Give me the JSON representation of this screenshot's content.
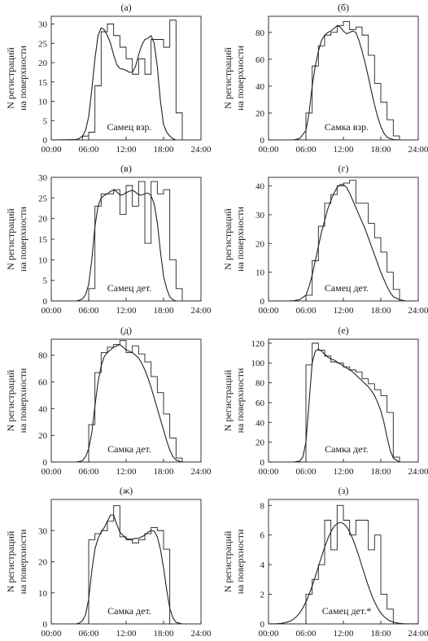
{
  "figure": {
    "y_axis_label_line1": "N регистраций",
    "y_axis_label_line2": "на поверхности"
  },
  "chart_data": [
    {
      "type": "line",
      "panel": "(а)",
      "annotation": "Самец взр.",
      "xlim": [
        "00:00",
        "24:00"
      ],
      "x_ticks": [
        "00:00",
        "06:00",
        "12:00",
        "18:00",
        "24:00"
      ],
      "ylim": [
        0,
        32
      ],
      "y_ticks": [
        0,
        5,
        10,
        15,
        20,
        25,
        30
      ],
      "grid": false,
      "legend": "none",
      "series": [
        {
          "kind": "histogram",
          "bin_width_hours": 1,
          "bin_start_hours": 0,
          "values": [
            0,
            0,
            0,
            0,
            0,
            1,
            2,
            14,
            28,
            30,
            27,
            24,
            21,
            17,
            21,
            17,
            26,
            26,
            24,
            31,
            7,
            0,
            0,
            0,
            0
          ]
        },
        {
          "kind": "smooth",
          "x_hours": [
            0,
            4,
            4.5,
            5,
            5.5,
            6,
            6.5,
            7,
            7.5,
            8,
            8.5,
            9,
            9.5,
            10,
            10.5,
            11,
            11.5,
            12,
            12.5,
            13,
            13.5,
            14,
            14.5,
            15,
            15.5,
            16,
            16.5,
            17,
            17.5,
            18,
            18.5,
            19,
            19.5,
            20,
            21,
            24
          ],
          "y": [
            0,
            0.1,
            0.4,
            1,
            2.5,
            6,
            13,
            21,
            27,
            29,
            28.5,
            27,
            25,
            22,
            19.5,
            18.5,
            18.3,
            18,
            17.5,
            17.5,
            19,
            22,
            24.5,
            26,
            26.3,
            27,
            25,
            19,
            10,
            4,
            2,
            1,
            0.3,
            0,
            0,
            0
          ]
        }
      ]
    },
    {
      "type": "line",
      "panel": "(б)",
      "annotation": "Самка взр.",
      "xlim": [
        "00:00",
        "24:00"
      ],
      "x_ticks": [
        "00:00",
        "06:00",
        "12:00",
        "18:00",
        "24:00"
      ],
      "ylim": [
        0,
        92
      ],
      "y_ticks": [
        0,
        20,
        40,
        60,
        80
      ],
      "grid": false,
      "legend": "none",
      "series": [
        {
          "kind": "histogram",
          "bin_width_hours": 1,
          "bin_start_hours": 0,
          "values": [
            0,
            0,
            0,
            0,
            0,
            0,
            20,
            55,
            70,
            78,
            80,
            85,
            88,
            82,
            84,
            78,
            63,
            42,
            28,
            15,
            3,
            0,
            0,
            0,
            0
          ]
        },
        {
          "kind": "smooth",
          "x_hours": [
            0,
            4,
            5,
            6,
            6.5,
            7,
            7.5,
            8,
            8.5,
            9,
            9.5,
            10,
            10.5,
            11,
            11.5,
            12,
            12.5,
            13,
            13.5,
            14,
            14.5,
            15,
            15.5,
            16,
            16.5,
            17,
            17.5,
            18,
            18.5,
            19,
            19.5,
            20,
            21,
            24
          ],
          "y": [
            0,
            0,
            1,
            7,
            20,
            40,
            55,
            66,
            74,
            78,
            80,
            81,
            83,
            85,
            84,
            81,
            79,
            80,
            81,
            80,
            74,
            66,
            57,
            47,
            36,
            26,
            17,
            10,
            5,
            2,
            1,
            0.3,
            0,
            0
          ]
        }
      ]
    },
    {
      "type": "line",
      "panel": "(в)",
      "annotation": "Самец дет.",
      "xlim": [
        "00:00",
        "24:00"
      ],
      "x_ticks": [
        "00:00",
        "06:00",
        "12:00",
        "18:00",
        "24:00"
      ],
      "ylim": [
        0,
        30
      ],
      "y_ticks": [
        0,
        5,
        10,
        15,
        20,
        25,
        30
      ],
      "grid": false,
      "legend": "none",
      "series": [
        {
          "kind": "histogram",
          "bin_width_hours": 1,
          "bin_start_hours": 0,
          "values": [
            0,
            0,
            0,
            0,
            0,
            0,
            3,
            23,
            26,
            26,
            27,
            21,
            28,
            23,
            29,
            14,
            29,
            26,
            27,
            10,
            3,
            0,
            0,
            0,
            0
          ]
        },
        {
          "kind": "smooth",
          "x_hours": [
            0,
            4,
            4.5,
            5,
            5.5,
            6,
            6.5,
            7,
            7.5,
            8,
            8.5,
            9,
            9.5,
            10,
            10.5,
            11,
            11.5,
            12,
            12.5,
            13,
            13.5,
            14,
            14.5,
            15,
            15.5,
            16,
            16.5,
            17,
            17.5,
            18,
            18.5,
            19,
            19.5,
            20,
            21,
            24
          ],
          "y": [
            0,
            0,
            0.2,
            0.5,
            1.5,
            4,
            10,
            18,
            23,
            25,
            25.6,
            26,
            26.6,
            27,
            26.5,
            25.7,
            25.8,
            26.3,
            26.6,
            26.9,
            26.4,
            25.8,
            25.7,
            26,
            26.2,
            25.6,
            23.5,
            19,
            12,
            6,
            3,
            1,
            0.3,
            0,
            0,
            0
          ]
        }
      ]
    },
    {
      "type": "line",
      "panel": "(г)",
      "annotation": "Самец дет.",
      "xlim": [
        "00:00",
        "24:00"
      ],
      "x_ticks": [
        "00:00",
        "06:00",
        "12:00",
        "18:00",
        "24:00"
      ],
      "ylim": [
        0,
        43
      ],
      "y_ticks": [
        0,
        10,
        20,
        30,
        40
      ],
      "grid": false,
      "legend": "none",
      "series": [
        {
          "kind": "histogram",
          "bin_width_hours": 1,
          "bin_start_hours": 0,
          "values": [
            0,
            0,
            0,
            0,
            0,
            0,
            2,
            14,
            26,
            34,
            37,
            40,
            41,
            42,
            34,
            34,
            27,
            22,
            17,
            10,
            4,
            0,
            0,
            0,
            0
          ]
        },
        {
          "kind": "smooth",
          "x_hours": [
            0,
            3,
            4,
            5,
            6,
            6.5,
            7,
            7.5,
            8,
            8.5,
            9,
            9.5,
            10,
            10.5,
            11,
            11.5,
            12,
            12.5,
            13,
            13.5,
            14,
            14.5,
            15,
            15.5,
            16,
            16.5,
            17,
            17.5,
            18,
            18.5,
            19,
            19.5,
            20,
            21,
            22,
            24
          ],
          "y": [
            0,
            0,
            0.1,
            0.5,
            2,
            5,
            9,
            14,
            19,
            24,
            28,
            32,
            35,
            37.5,
            39.5,
            40.5,
            40.5,
            39.5,
            37.5,
            35,
            32.5,
            30,
            27.5,
            25,
            22,
            19,
            16,
            13,
            10,
            7.5,
            5,
            3,
            1.5,
            0.5,
            0,
            0
          ]
        }
      ]
    },
    {
      "type": "line",
      "panel": "(д)",
      "annotation": "Самка дет.",
      "xlim": [
        "00:00",
        "24:00"
      ],
      "x_ticks": [
        "00:00",
        "06:00",
        "12:00",
        "18:00",
        "24:00"
      ],
      "ylim": [
        0,
        92
      ],
      "y_ticks": [
        0,
        20,
        40,
        60,
        80
      ],
      "grid": false,
      "legend": "none",
      "series": [
        {
          "kind": "histogram",
          "bin_width_hours": 1,
          "bin_start_hours": 0,
          "values": [
            0,
            0,
            0,
            0,
            0,
            0,
            28,
            67,
            82,
            86,
            88,
            91,
            82,
            87,
            81,
            75,
            64,
            52,
            36,
            18,
            3,
            0,
            0,
            0,
            0
          ]
        },
        {
          "kind": "smooth",
          "x_hours": [
            0,
            4,
            5,
            5.5,
            6,
            6.5,
            7,
            7.5,
            8,
            8.5,
            9,
            9.5,
            10,
            10.5,
            11,
            11.5,
            12,
            12.5,
            13,
            13.5,
            14,
            14.5,
            15,
            15.5,
            16,
            16.5,
            17,
            17.5,
            18,
            18.5,
            19,
            19.5,
            20,
            21,
            24
          ],
          "y": [
            0,
            0,
            1,
            4,
            10,
            22,
            42,
            60,
            72,
            79,
            82,
            84,
            86,
            87,
            88,
            86,
            84,
            83,
            82,
            80,
            78,
            74,
            69,
            63,
            56,
            48,
            40,
            32,
            24,
            16,
            9,
            4,
            1.5,
            0,
            0
          ]
        }
      ]
    },
    {
      "type": "line",
      "panel": "(е)",
      "annotation": "Самка дет.",
      "xlim": [
        "00:00",
        "24:00"
      ],
      "x_ticks": [
        "00:00",
        "06:00",
        "12:00",
        "18:00",
        "24:00"
      ],
      "ylim": [
        0,
        124
      ],
      "y_ticks": [
        0,
        20,
        40,
        60,
        80,
        100,
        120
      ],
      "grid": false,
      "legend": "none",
      "series": [
        {
          "kind": "histogram",
          "bin_width_hours": 1,
          "bin_start_hours": 0,
          "values": [
            0,
            0,
            0,
            0,
            0,
            0,
            98,
            120,
            113,
            107,
            101,
            100,
            96,
            93,
            91,
            84,
            79,
            73,
            67,
            50,
            5,
            0,
            0,
            0,
            0
          ]
        },
        {
          "kind": "smooth",
          "x_hours": [
            0,
            4,
            5,
            5.5,
            6,
            6.5,
            7,
            7.5,
            8,
            8.5,
            9,
            9.5,
            10,
            10.5,
            11,
            11.5,
            12,
            12.5,
            13,
            13.5,
            14,
            14.5,
            15,
            15.5,
            16,
            16.5,
            17,
            17.5,
            18,
            18.5,
            19,
            19.5,
            20,
            21,
            24
          ],
          "y": [
            0,
            0,
            1,
            5,
            20,
            60,
            100,
            112,
            114,
            112,
            109,
            106,
            104,
            103,
            101,
            99,
            97,
            95,
            93,
            91,
            88,
            85,
            82,
            79,
            76,
            72,
            67,
            60,
            52,
            40,
            25,
            12,
            4,
            0,
            0
          ]
        }
      ]
    },
    {
      "type": "line",
      "panel": "(ж)",
      "annotation": "Самка дет.",
      "xlim": [
        "00:00",
        "24:00"
      ],
      "x_ticks": [
        "00:00",
        "06:00",
        "12:00",
        "18:00",
        "24:00"
      ],
      "ylim": [
        0,
        40
      ],
      "y_ticks": [
        0,
        10,
        20,
        30
      ],
      "grid": false,
      "legend": "none",
      "series": [
        {
          "kind": "histogram",
          "bin_width_hours": 1,
          "bin_start_hours": 0,
          "values": [
            0,
            0,
            0,
            0,
            0,
            0,
            27,
            29,
            30,
            33,
            38,
            28,
            27,
            26,
            27,
            29,
            31,
            30,
            24,
            0,
            0,
            0,
            0,
            0,
            0
          ]
        },
        {
          "kind": "smooth",
          "x_hours": [
            0,
            4,
            4.5,
            5,
            5.5,
            6,
            6.5,
            7,
            7.5,
            8,
            8.5,
            9,
            9.5,
            10,
            10.5,
            11,
            11.5,
            12,
            12.5,
            13,
            13.5,
            14,
            14.5,
            15,
            15.5,
            16,
            16.5,
            17,
            17.5,
            18,
            18.5,
            19,
            19.5,
            20,
            21,
            24
          ],
          "y": [
            0,
            0,
            0.3,
            1,
            3,
            8,
            17,
            24,
            27.5,
            29.5,
            31,
            33,
            35,
            35,
            32,
            29.5,
            28.5,
            27.5,
            27.2,
            27.2,
            27.5,
            27.5,
            28,
            28.5,
            29.5,
            30,
            29.8,
            28,
            24,
            18,
            11,
            5,
            2,
            0.5,
            0,
            0
          ]
        }
      ]
    },
    {
      "type": "line",
      "panel": "(з)",
      "annotation": "Самец дет.*",
      "xlim": [
        "00:00",
        "24:00"
      ],
      "x_ticks": [
        "00:00",
        "06:00",
        "12:00",
        "18:00",
        "24:00"
      ],
      "ylim": [
        0,
        8.4
      ],
      "y_ticks": [
        0,
        2,
        4,
        6,
        8
      ],
      "grid": false,
      "legend": "none",
      "series": [
        {
          "kind": "histogram",
          "bin_width_hours": 1,
          "bin_start_hours": 0,
          "values": [
            0,
            0,
            0,
            0,
            0,
            0,
            2,
            3,
            4,
            7,
            5,
            8,
            7,
            6,
            7,
            7,
            5,
            6,
            2,
            1,
            0,
            0,
            0,
            0,
            0
          ]
        },
        {
          "kind": "smooth",
          "x_hours": [
            0,
            0.5,
            1,
            1.5,
            2,
            2.5,
            3,
            3.5,
            4,
            4.5,
            5,
            5.5,
            6,
            6.5,
            7,
            7.5,
            8,
            8.5,
            9,
            9.5,
            10,
            10.5,
            11,
            11.5,
            12,
            12.5,
            13,
            13.5,
            14,
            14.5,
            15,
            15.5,
            16,
            16.5,
            17,
            17.5,
            18,
            18.5,
            19,
            19.5,
            20,
            20.5,
            21,
            21.5,
            22,
            22.5,
            23,
            23.5,
            24
          ],
          "y": [
            0.003,
            0.005,
            0.01,
            0.02,
            0.04,
            0.07,
            0.12,
            0.2,
            0.32,
            0.5,
            0.74,
            1.07,
            1.48,
            1.98,
            2.56,
            3.2,
            3.87,
            4.55,
            5.18,
            5.75,
            6.22,
            6.57,
            6.78,
            6.85,
            6.78,
            6.57,
            6.22,
            5.75,
            5.18,
            4.55,
            3.87,
            3.2,
            2.56,
            1.98,
            1.48,
            1.07,
            0.74,
            0.5,
            0.32,
            0.2,
            0.12,
            0.07,
            0.04,
            0.02,
            0.01,
            0.005,
            0.003,
            0.001,
            0.001
          ]
        }
      ]
    }
  ]
}
